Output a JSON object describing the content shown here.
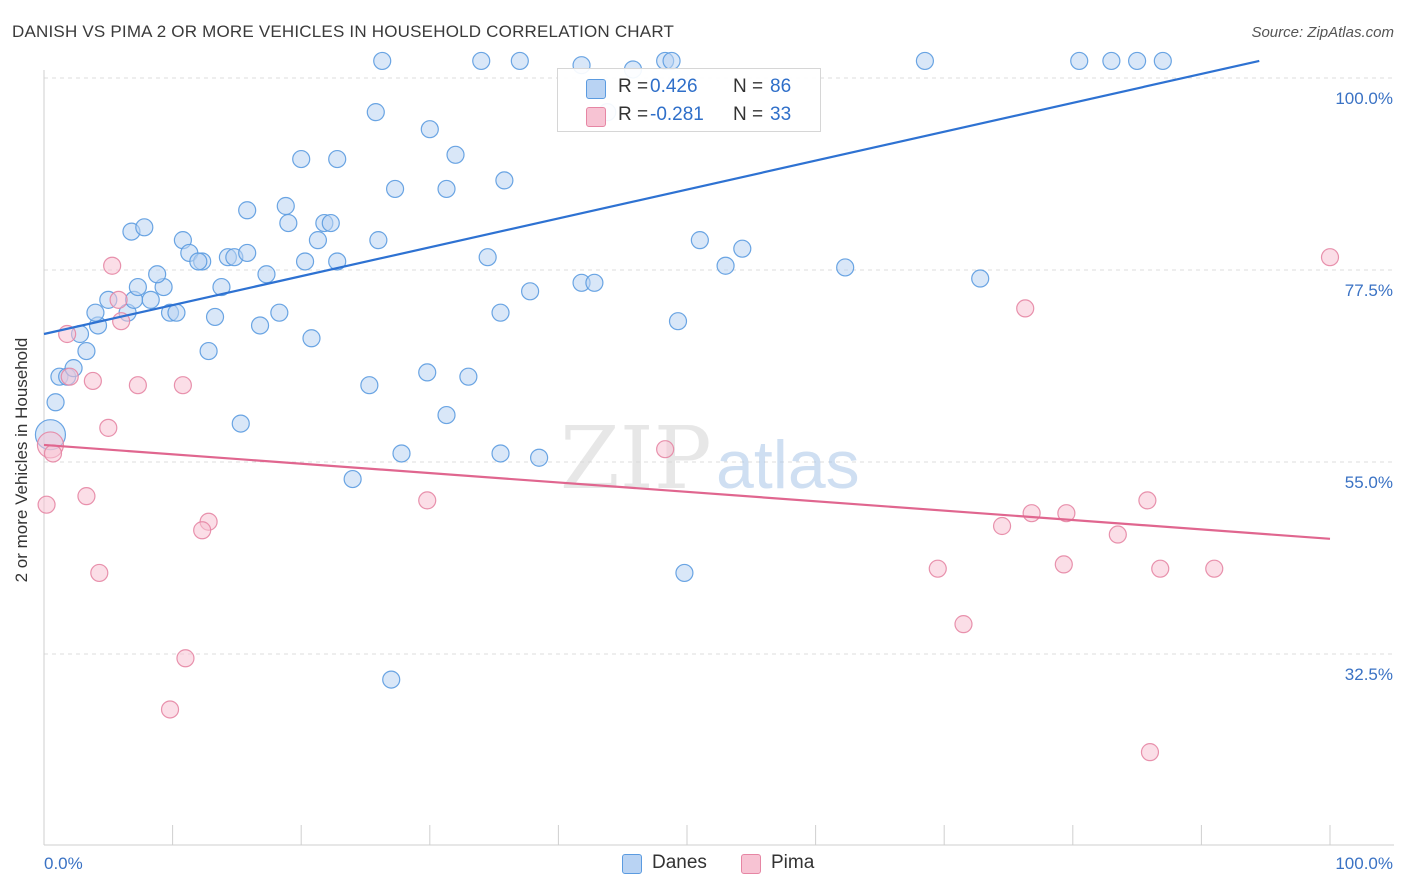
{
  "header": {
    "title": "DANISH VS PIMA 2 OR MORE VEHICLES IN HOUSEHOLD CORRELATION CHART",
    "source": "Source: ZipAtlas.com"
  },
  "watermark": {
    "zip": "ZIP",
    "atlas": "atlas"
  },
  "legend": {
    "rows": [
      {
        "r_label": "R =",
        "r_value": "0.426",
        "n_label": "N =",
        "n_value": "86"
      },
      {
        "r_label": "R =",
        "r_value": "-0.281",
        "n_label": "N =",
        "n_value": "33"
      }
    ]
  },
  "chart_data": {
    "type": "scatter",
    "title": "DANISH VS PIMA 2 OR MORE VEHICLES IN HOUSEHOLD CORRELATION CHART",
    "xlabel": "",
    "ylabel": "2 or more Vehicles in Household",
    "xlim": [
      0,
      100
    ],
    "ylim": [
      10,
      102
    ],
    "x_tick_labels": [
      "0.0%",
      "100.0%"
    ],
    "y_ticks": [
      {
        "value": 100,
        "label": "100.0%"
      },
      {
        "value": 77.5,
        "label": "77.5%"
      },
      {
        "value": 55,
        "label": "55.0%"
      },
      {
        "value": 32.5,
        "label": "32.5%"
      }
    ],
    "grid": true,
    "legend_position": "bottom",
    "series": [
      {
        "name": "Danes",
        "color": "#5b9be0",
        "fill": "#b9d3f3",
        "trend": {
          "x": [
            0,
            94.5
          ],
          "y": [
            70.0,
            102.0
          ]
        },
        "points": [
          [
            0.5,
            58.2
          ],
          [
            0.9,
            62.0
          ],
          [
            1.2,
            65.0
          ],
          [
            1.8,
            65.0
          ],
          [
            2.3,
            66.0
          ],
          [
            3.3,
            68.0
          ],
          [
            2.8,
            70.0
          ],
          [
            4.2,
            71.0
          ],
          [
            4.0,
            72.5
          ],
          [
            6.5,
            72.5
          ],
          [
            7.0,
            74.0
          ],
          [
            5.0,
            74.0
          ],
          [
            8.3,
            74.0
          ],
          [
            7.3,
            75.5
          ],
          [
            9.3,
            75.5
          ],
          [
            8.8,
            77.0
          ],
          [
            9.8,
            72.5
          ],
          [
            10.3,
            72.5
          ],
          [
            6.8,
            82.0
          ],
          [
            7.8,
            82.5
          ],
          [
            10.8,
            81.0
          ],
          [
            11.3,
            79.5
          ],
          [
            12.3,
            78.5
          ],
          [
            12.0,
            78.5
          ],
          [
            14.3,
            79.0
          ],
          [
            14.8,
            79.0
          ],
          [
            15.8,
            79.5
          ],
          [
            13.8,
            75.5
          ],
          [
            12.8,
            68.0
          ],
          [
            13.3,
            72.0
          ],
          [
            16.8,
            71.0
          ],
          [
            17.3,
            77.0
          ],
          [
            18.3,
            72.5
          ],
          [
            20.3,
            78.5
          ],
          [
            21.3,
            81.0
          ],
          [
            22.8,
            78.5
          ],
          [
            21.8,
            83.0
          ],
          [
            19.0,
            83.0
          ],
          [
            15.8,
            84.5
          ],
          [
            18.8,
            85.0
          ],
          [
            20.0,
            90.5
          ],
          [
            22.8,
            90.5
          ],
          [
            26.0,
            81.0
          ],
          [
            27.3,
            87.0
          ],
          [
            22.3,
            83.0
          ],
          [
            20.8,
            69.5
          ],
          [
            25.8,
            96.0
          ],
          [
            25.3,
            64.0
          ],
          [
            30.0,
            94.0
          ],
          [
            32.0,
            91.0
          ],
          [
            31.3,
            87.0
          ],
          [
            35.8,
            88.0
          ],
          [
            34.5,
            79.0
          ],
          [
            37.8,
            75.0
          ],
          [
            35.5,
            72.5
          ],
          [
            29.8,
            65.5
          ],
          [
            31.3,
            60.5
          ],
          [
            33.0,
            65.0
          ],
          [
            15.3,
            59.5
          ],
          [
            24.0,
            53.0
          ],
          [
            27.8,
            56.0
          ],
          [
            38.5,
            55.5
          ],
          [
            41.8,
            76.0
          ],
          [
            42.8,
            76.0
          ],
          [
            35.5,
            56.0
          ],
          [
            26.3,
            102.0
          ],
          [
            34.0,
            102.0
          ],
          [
            37.0,
            102.0
          ],
          [
            41.8,
            101.5
          ],
          [
            45.8,
            101.0
          ],
          [
            48.3,
            102.0
          ],
          [
            48.8,
            102.0
          ],
          [
            43.8,
            96.0
          ],
          [
            51.0,
            81.0
          ],
          [
            53.0,
            78.0
          ],
          [
            54.3,
            80.0
          ],
          [
            62.3,
            77.8
          ],
          [
            68.5,
            102.0
          ],
          [
            80.5,
            102.0
          ],
          [
            83.0,
            102.0
          ],
          [
            85.0,
            102.0
          ],
          [
            87.0,
            102.0
          ],
          [
            72.8,
            76.5
          ],
          [
            49.3,
            71.5
          ],
          [
            49.8,
            42.0
          ],
          [
            27.0,
            29.5
          ]
        ]
      },
      {
        "name": "Pima",
        "color": "#e686a4",
        "fill": "#f7c3d3",
        "trend": {
          "x": [
            0,
            100
          ],
          "y": [
            57.0,
            46.0
          ]
        },
        "points": [
          [
            0.5,
            57.0
          ],
          [
            0.7,
            56.0
          ],
          [
            0.2,
            50.0
          ],
          [
            1.8,
            70.0
          ],
          [
            3.3,
            51.0
          ],
          [
            4.3,
            42.0
          ],
          [
            3.8,
            64.5
          ],
          [
            5.0,
            59.0
          ],
          [
            5.3,
            78.0
          ],
          [
            5.8,
            74.0
          ],
          [
            6.0,
            71.5
          ],
          [
            7.3,
            64.0
          ],
          [
            10.8,
            64.0
          ],
          [
            12.8,
            48.0
          ],
          [
            12.3,
            47.0
          ],
          [
            11.0,
            32.0
          ],
          [
            9.8,
            26.0
          ],
          [
            29.8,
            50.5
          ],
          [
            48.3,
            56.5
          ],
          [
            69.5,
            42.5
          ],
          [
            71.5,
            36.0
          ],
          [
            74.5,
            47.5
          ],
          [
            76.8,
            49.0
          ],
          [
            79.5,
            49.0
          ],
          [
            76.3,
            73.0
          ],
          [
            79.3,
            43.0
          ],
          [
            83.5,
            46.5
          ],
          [
            85.8,
            50.5
          ],
          [
            86.8,
            42.5
          ],
          [
            91.0,
            42.5
          ],
          [
            100.0,
            79.0
          ],
          [
            86.0,
            21.0
          ],
          [
            2.0,
            65.0
          ]
        ]
      }
    ]
  }
}
